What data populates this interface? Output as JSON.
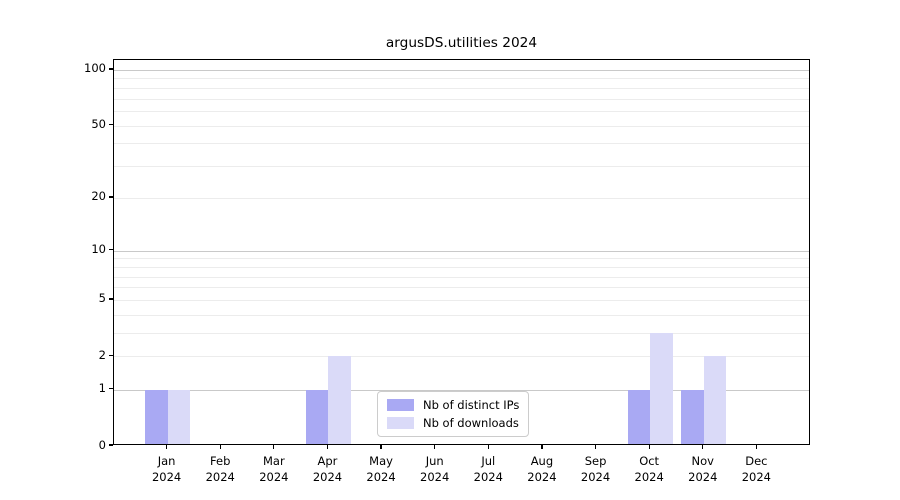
{
  "chart_data": {
    "type": "bar",
    "title": "argusDS.utilities 2024",
    "xlabel": "",
    "ylabel": "",
    "categories": [
      "Jan",
      "Feb",
      "Mar",
      "Apr",
      "May",
      "Jun",
      "Jul",
      "Aug",
      "Sep",
      "Oct",
      "Nov",
      "Dec"
    ],
    "xtick_second_line": "2024",
    "series": [
      {
        "name": "Nb of distinct IPs",
        "color": "#a9a9f3",
        "values": [
          1,
          0,
          0,
          1,
          0,
          0,
          0,
          0,
          0,
          1,
          1,
          0
        ]
      },
      {
        "name": "Nb of downloads",
        "color": "#dadaf8",
        "values": [
          1,
          0,
          0,
          2,
          0,
          0,
          0,
          0,
          0,
          3,
          2,
          0
        ]
      }
    ],
    "yscale": "log1p",
    "ylim": [
      0,
      113
    ],
    "yticks": [
      0,
      1,
      2,
      5,
      10,
      20,
      50,
      100
    ],
    "major_gridlines": [
      1,
      10,
      100
    ],
    "minor_gridlines": [
      2,
      3,
      4,
      5,
      6,
      7,
      8,
      9,
      20,
      30,
      40,
      50,
      60,
      70,
      80,
      90
    ],
    "grid": true,
    "legend_position": "lower center",
    "colors": {
      "major_grid": "#c9c9c9",
      "minor_grid": "#ececec",
      "spine": "#000000",
      "text": "#000000",
      "background": "#ffffff"
    }
  }
}
